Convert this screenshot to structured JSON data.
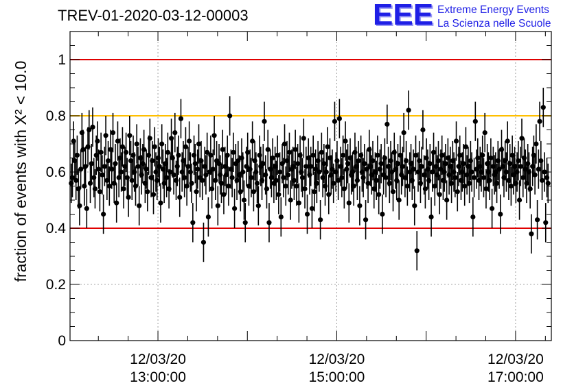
{
  "title": "TREV-01-2020-03-12-00003",
  "logo": {
    "mark": "EEE",
    "line1": "Extreme Energy Events",
    "line2": "La Scienza nelle Scuole",
    "color": "#1f1fe6"
  },
  "chart_data": {
    "type": "scatter",
    "ylabel": "fraction of events with X² < 10.0",
    "ylim": [
      0,
      1.1
    ],
    "yticks": [
      0,
      0.2,
      0.4,
      0.6,
      0.8,
      1
    ],
    "ytick_labels": [
      "0",
      "0.2",
      "0.4",
      "0.6",
      "0.8",
      "1"
    ],
    "xrange": [
      "12/03/20 12:01:00",
      "12/03/20 17:24:00"
    ],
    "x_major_ticks": [
      {
        "date": "12/03/20",
        "time": "13:00:00"
      },
      {
        "date": "12/03/20",
        "time": "15:00:00"
      },
      {
        "date": "12/03/20",
        "time": "17:00:00"
      }
    ],
    "reference_lines": [
      {
        "y": 1.0,
        "color": "#e00000"
      },
      {
        "y": 0.8,
        "color": "#ffbf00"
      },
      {
        "y": 0.4,
        "color": "#e00000"
      }
    ],
    "grid": "dotted at y=0.2",
    "marker_color": "#000000",
    "error_bar_half_width": 0.07,
    "series": [
      {
        "x_start": "12/03/20 12:01:00",
        "x_step_minutes": 0.8,
        "values": [
          0.52,
          0.56,
          0.58,
          0.71,
          0.64,
          0.57,
          0.66,
          0.54,
          0.48,
          0.61,
          0.74,
          0.68,
          0.55,
          0.62,
          0.47,
          0.69,
          0.75,
          0.56,
          0.63,
          0.76,
          0.58,
          0.54,
          0.66,
          0.71,
          0.61,
          0.53,
          0.67,
          0.59,
          0.45,
          0.62,
          0.73,
          0.57,
          0.64,
          0.55,
          0.68,
          0.61,
          0.74,
          0.56,
          0.63,
          0.49,
          0.71,
          0.58,
          0.65,
          0.6,
          0.69,
          0.54,
          0.62,
          0.67,
          0.58,
          0.51,
          0.73,
          0.64,
          0.57,
          0.66,
          0.6,
          0.55,
          0.7,
          0.62,
          0.48,
          0.65,
          0.59,
          0.63,
          0.68,
          0.56,
          0.61,
          0.53,
          0.66,
          0.72,
          0.58,
          0.64,
          0.52,
          0.69,
          0.6,
          0.57,
          0.65,
          0.62,
          0.49,
          0.7,
          0.61,
          0.56,
          0.63,
          0.58,
          0.67,
          0.54,
          0.6,
          0.72,
          0.65,
          0.59,
          0.74,
          0.57,
          0.62,
          0.66,
          0.51,
          0.79,
          0.6,
          0.64,
          0.58,
          0.69,
          0.55,
          0.62,
          0.71,
          0.6,
          0.56,
          0.42,
          0.66,
          0.63,
          0.53,
          0.61,
          0.7,
          0.58,
          0.64,
          0.57,
          0.35,
          0.62,
          0.59,
          0.67,
          0.44,
          0.6,
          0.66,
          0.54,
          0.61,
          0.73,
          0.57,
          0.64,
          0.48,
          0.63,
          0.59,
          0.56,
          0.68,
          0.52,
          0.62,
          0.59,
          0.66,
          0.55,
          0.8,
          0.61,
          0.58,
          0.67,
          0.47,
          0.63,
          0.57,
          0.64,
          0.59,
          0.53,
          0.65,
          0.6,
          0.5,
          0.42,
          0.62,
          0.67,
          0.55,
          0.61,
          0.58,
          0.71,
          0.53,
          0.64,
          0.6,
          0.56,
          0.48,
          0.66,
          0.62,
          0.57,
          0.63,
          0.78,
          0.59,
          0.54,
          0.68,
          0.42,
          0.61,
          0.58,
          0.65,
          0.56,
          0.62,
          0.57,
          0.66,
          0.52,
          0.6,
          0.44,
          0.63,
          0.58,
          0.7,
          0.55,
          0.64,
          0.59,
          0.67,
          0.5,
          0.61,
          0.62,
          0.57,
          0.68,
          0.55,
          0.63,
          0.49,
          0.66,
          0.6,
          0.58,
          0.72,
          0.54,
          0.62,
          0.45,
          0.65,
          0.59,
          0.62,
          0.47,
          0.66,
          0.53,
          0.61,
          0.56,
          0.64,
          0.6,
          0.43,
          0.67,
          0.58,
          0.63,
          0.55,
          0.6,
          0.69,
          0.52,
          0.65,
          0.59,
          0.61,
          0.56,
          0.78,
          0.6,
          0.64,
          0.57,
          0.79,
          0.62,
          0.58,
          0.66,
          0.54,
          0.71,
          0.61,
          0.63,
          0.49,
          0.65,
          0.59,
          0.6,
          0.55,
          0.67,
          0.62,
          0.57,
          0.64,
          0.48,
          0.66,
          0.6,
          0.58,
          0.63,
          0.43,
          0.61,
          0.56,
          0.68,
          0.62,
          0.59,
          0.64,
          0.54,
          0.6,
          0.57,
          0.66,
          0.52,
          0.61,
          0.63,
          0.45,
          0.59,
          0.65,
          0.58,
          0.77,
          0.62,
          0.56,
          0.64,
          0.6,
          0.53,
          0.67,
          0.61,
          0.57,
          0.63,
          0.5,
          0.66,
          0.59,
          0.62,
          0.74,
          0.58,
          0.64,
          0.55,
          0.82,
          0.6,
          0.63,
          0.57,
          0.61,
          0.48,
          0.66,
          0.32,
          0.6,
          0.64,
          0.56,
          0.62,
          0.75,
          0.59,
          0.54,
          0.65,
          0.61,
          0.57,
          0.63,
          0.44,
          0.6,
          0.67,
          0.55,
          0.62,
          0.59,
          0.64,
          0.52,
          0.61,
          0.66,
          0.57,
          0.6,
          0.63,
          0.5,
          0.65,
          0.59,
          0.62,
          0.56,
          0.64,
          0.6,
          0.58,
          0.71,
          0.53,
          0.62,
          0.66,
          0.57,
          0.6,
          0.63,
          0.55,
          0.69,
          0.59,
          0.62,
          0.56,
          0.64,
          0.6,
          0.44,
          0.58,
          0.78,
          0.61,
          0.65,
          0.57,
          0.62,
          0.6,
          0.66,
          0.58,
          0.74,
          0.54,
          0.63,
          0.6,
          0.57,
          0.65,
          0.47,
          0.62,
          0.59,
          0.6,
          0.56,
          0.64,
          0.61,
          0.45,
          0.68,
          0.62,
          0.58,
          0.64,
          0.6,
          0.71,
          0.57,
          0.63,
          0.55,
          0.66,
          0.59,
          0.62,
          0.56,
          0.6,
          0.64,
          0.5,
          0.62,
          0.72,
          0.58,
          0.65,
          0.61,
          0.56,
          0.63,
          0.6,
          0.54,
          0.38,
          0.62,
          0.66,
          0.59,
          0.7,
          0.43,
          0.61,
          0.78,
          0.64,
          0.57,
          0.83,
          0.6,
          0.42,
          0.58,
          0.56
        ]
      }
    ]
  }
}
